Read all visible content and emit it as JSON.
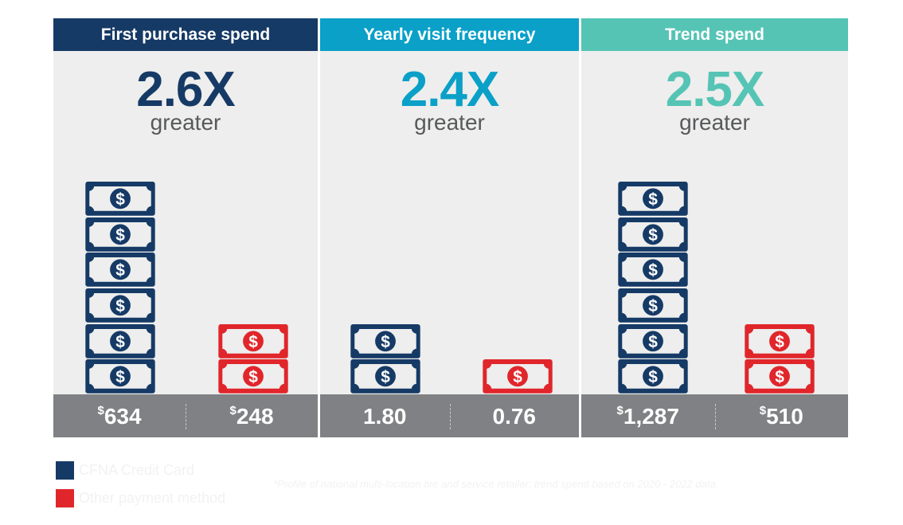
{
  "chart_data": {
    "type": "bar",
    "colors": {
      "cfna": "#163a66",
      "other": "#e0262b",
      "panel2": "#0aa0c8",
      "panel3": "#55c4b5"
    },
    "legend": [
      "CFNA Credit Card",
      "Other payment method"
    ],
    "footnote": "*Profile of national multi-location tire and service retailer; trend spend based on 2020 - 2022 data.",
    "panels": [
      {
        "title": "First purchase spend",
        "multiplier": "2.6X",
        "sub": "greater",
        "accent": "#163a66",
        "cfna": {
          "value": 634,
          "label": "634",
          "prefix": "$",
          "bills": 6
        },
        "other": {
          "value": 248,
          "label": "248",
          "prefix": "$",
          "bills": 2
        }
      },
      {
        "title": "Yearly visit frequency",
        "multiplier": "2.4X",
        "sub": "greater",
        "accent": "#0aa0c8",
        "cfna": {
          "value": 1.8,
          "label": "1.80",
          "prefix": "",
          "bills": 2
        },
        "other": {
          "value": 0.76,
          "label": "0.76",
          "prefix": "",
          "bills": 1
        }
      },
      {
        "title": "Trend spend",
        "multiplier": "2.5X",
        "sub": "greater",
        "accent": "#55c4b5",
        "cfna": {
          "value": 1287,
          "label": "1,287",
          "prefix": "$",
          "bills": 6
        },
        "other": {
          "value": 510,
          "label": "510",
          "prefix": "$",
          "bills": 2
        }
      }
    ]
  }
}
